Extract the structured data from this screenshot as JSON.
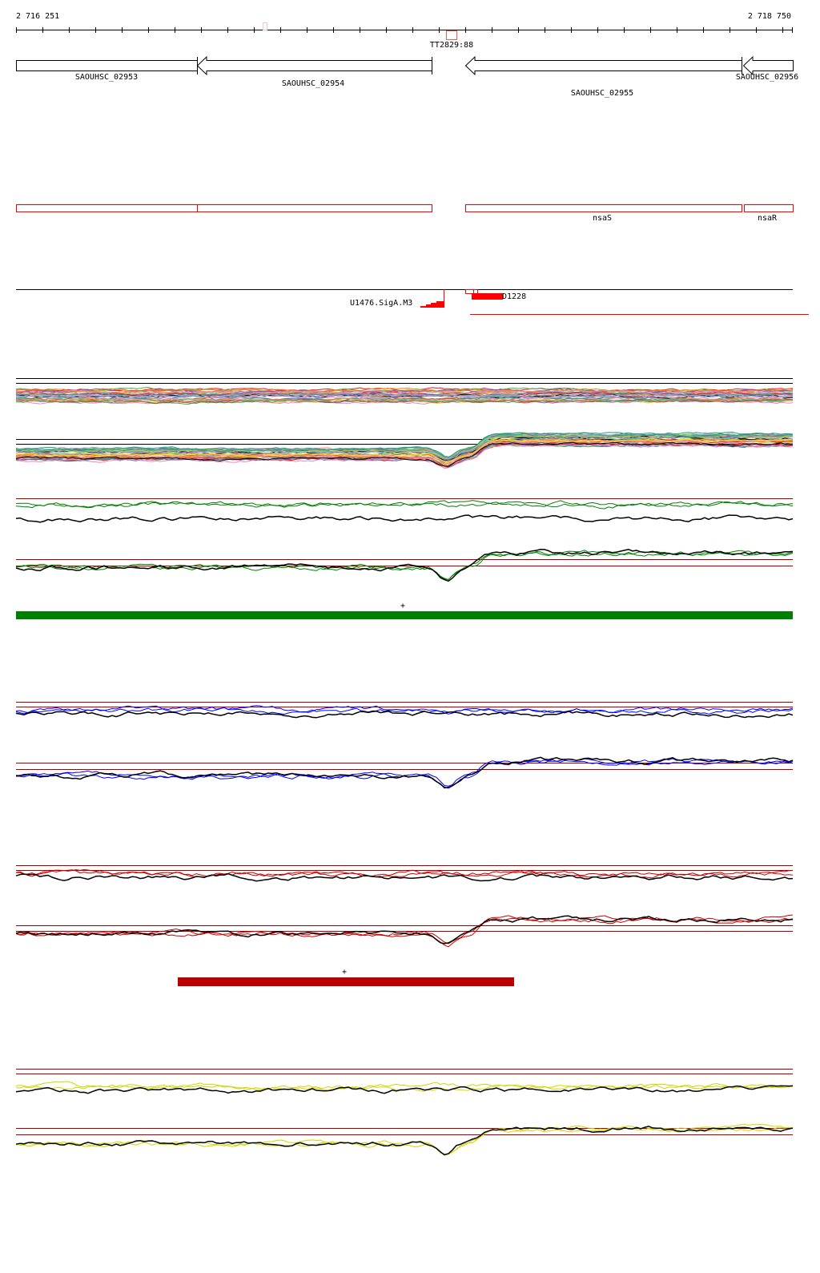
{
  "ruler": {
    "start_label": "2 716 251",
    "end_label": "2 718 750"
  },
  "terminator": {
    "label": "TT2829:88"
  },
  "genes": [
    {
      "label": "SAOUHSC_02953",
      "strand": "+"
    },
    {
      "label": "SAOUHSC_02954",
      "strand": "-"
    },
    {
      "label": "SAOUHSC_02955",
      "strand": "-"
    },
    {
      "label": "SAOUHSC_02956",
      "strand": "-"
    }
  ],
  "cds_track": [
    {
      "label": ""
    },
    {
      "label": ""
    },
    {
      "label": "nsaS"
    },
    {
      "label": "nsaR"
    }
  ],
  "features": {
    "promoter_label": "U1476.SigA.M3",
    "region_label": "D1228"
  },
  "colors": {
    "green": "#008000",
    "blue": "#0000ff",
    "red": "#cc0000",
    "yellow": "#d4d400",
    "threshold": "#a00000"
  },
  "segments": [
    {
      "strand_mark": "+",
      "color": "#008000"
    },
    {
      "strand_mark": "+",
      "color": "#bb0000"
    }
  ]
}
